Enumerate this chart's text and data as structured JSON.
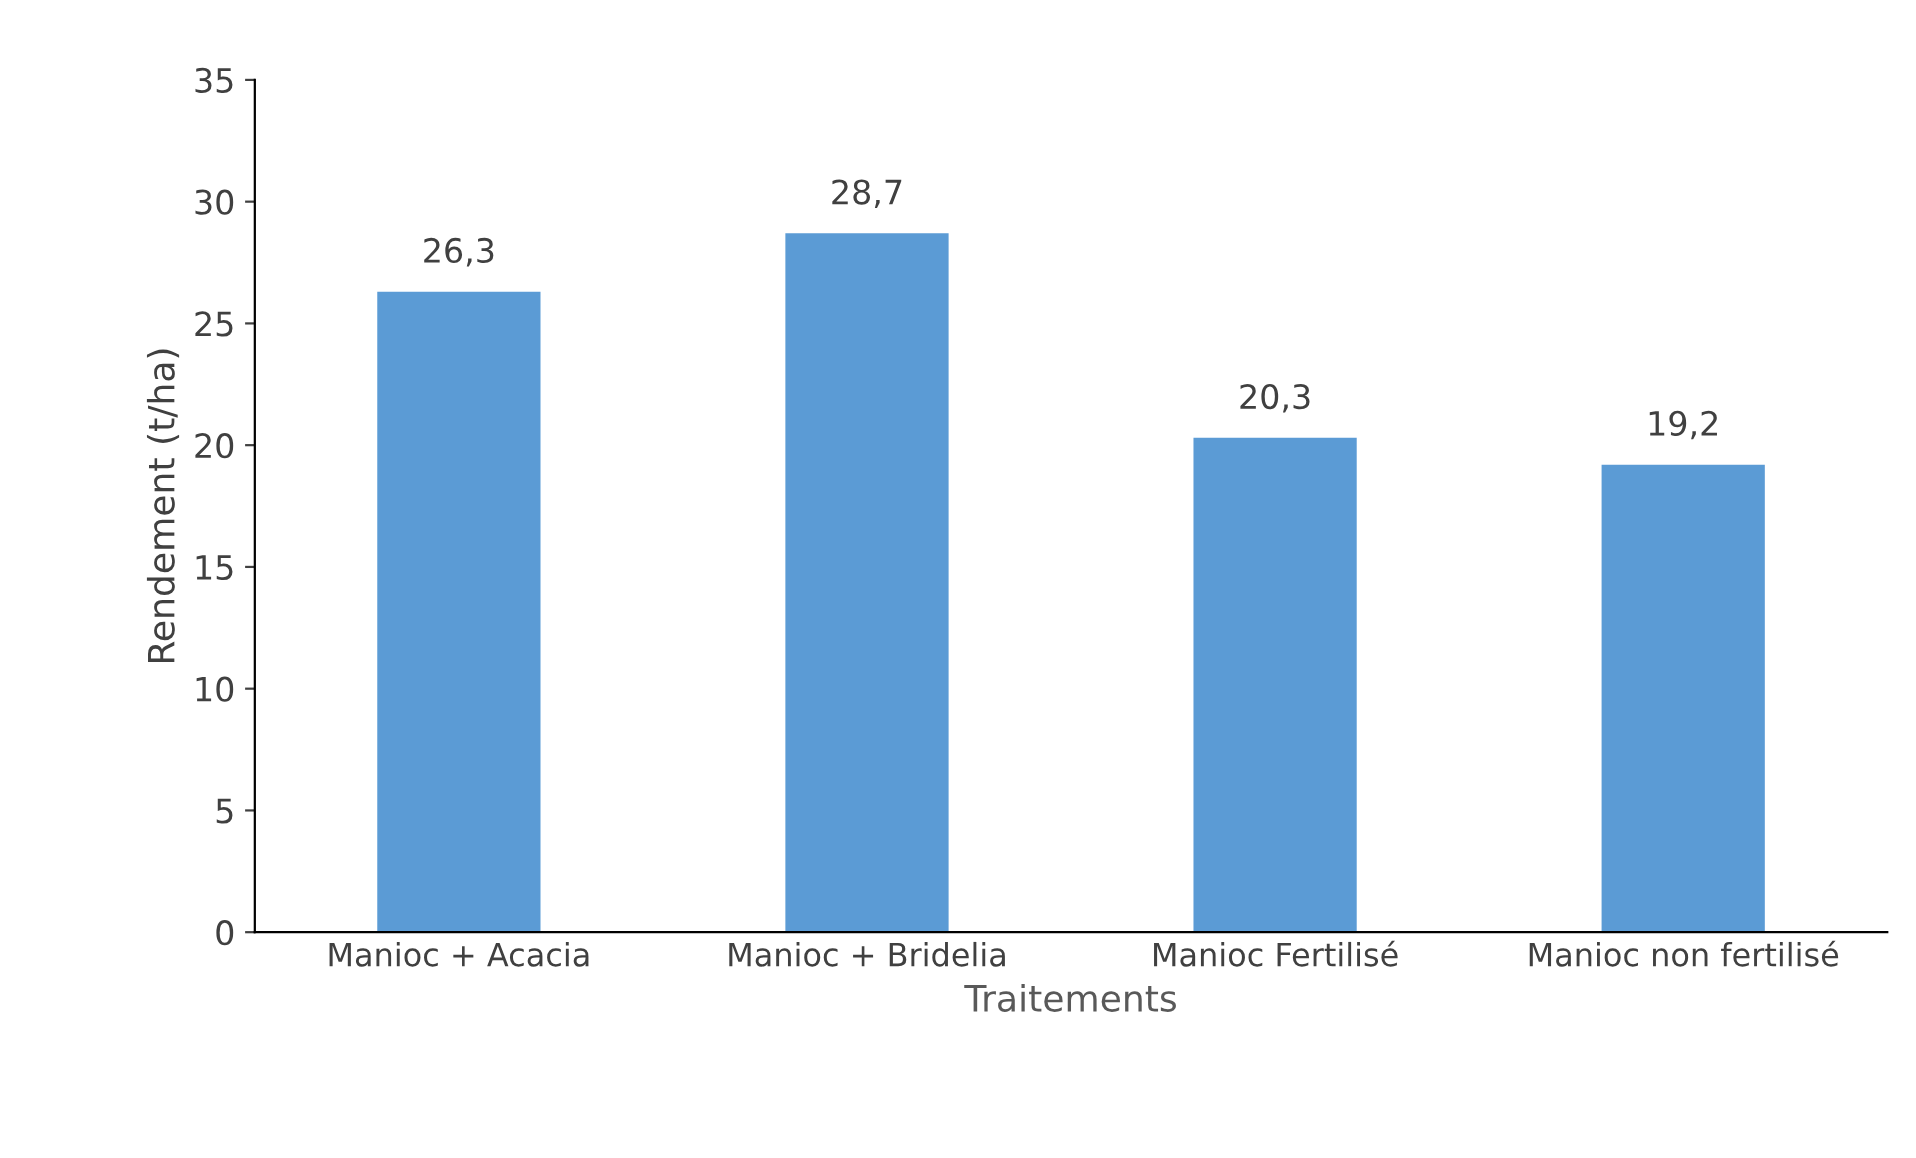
{
  "chart_data": {
    "type": "bar",
    "xlabel": "Traitements",
    "ylabel": "Rendement (t/ha)",
    "categories": [
      "Manioc + Acacia",
      "Manioc + Bridelia",
      "Manioc Fertilisé",
      "Manioc non fertilisé"
    ],
    "values": [
      26.3,
      28.7,
      20.3,
      19.2
    ],
    "value_labels": [
      "26,3",
      "28,7",
      "20,3",
      "19,2"
    ],
    "color": "#5b9bd5",
    "ylim": [
      0,
      35
    ],
    "yticks": [
      0,
      5,
      10,
      15,
      20,
      25,
      30,
      35
    ],
    "grid": false,
    "legend": false
  }
}
